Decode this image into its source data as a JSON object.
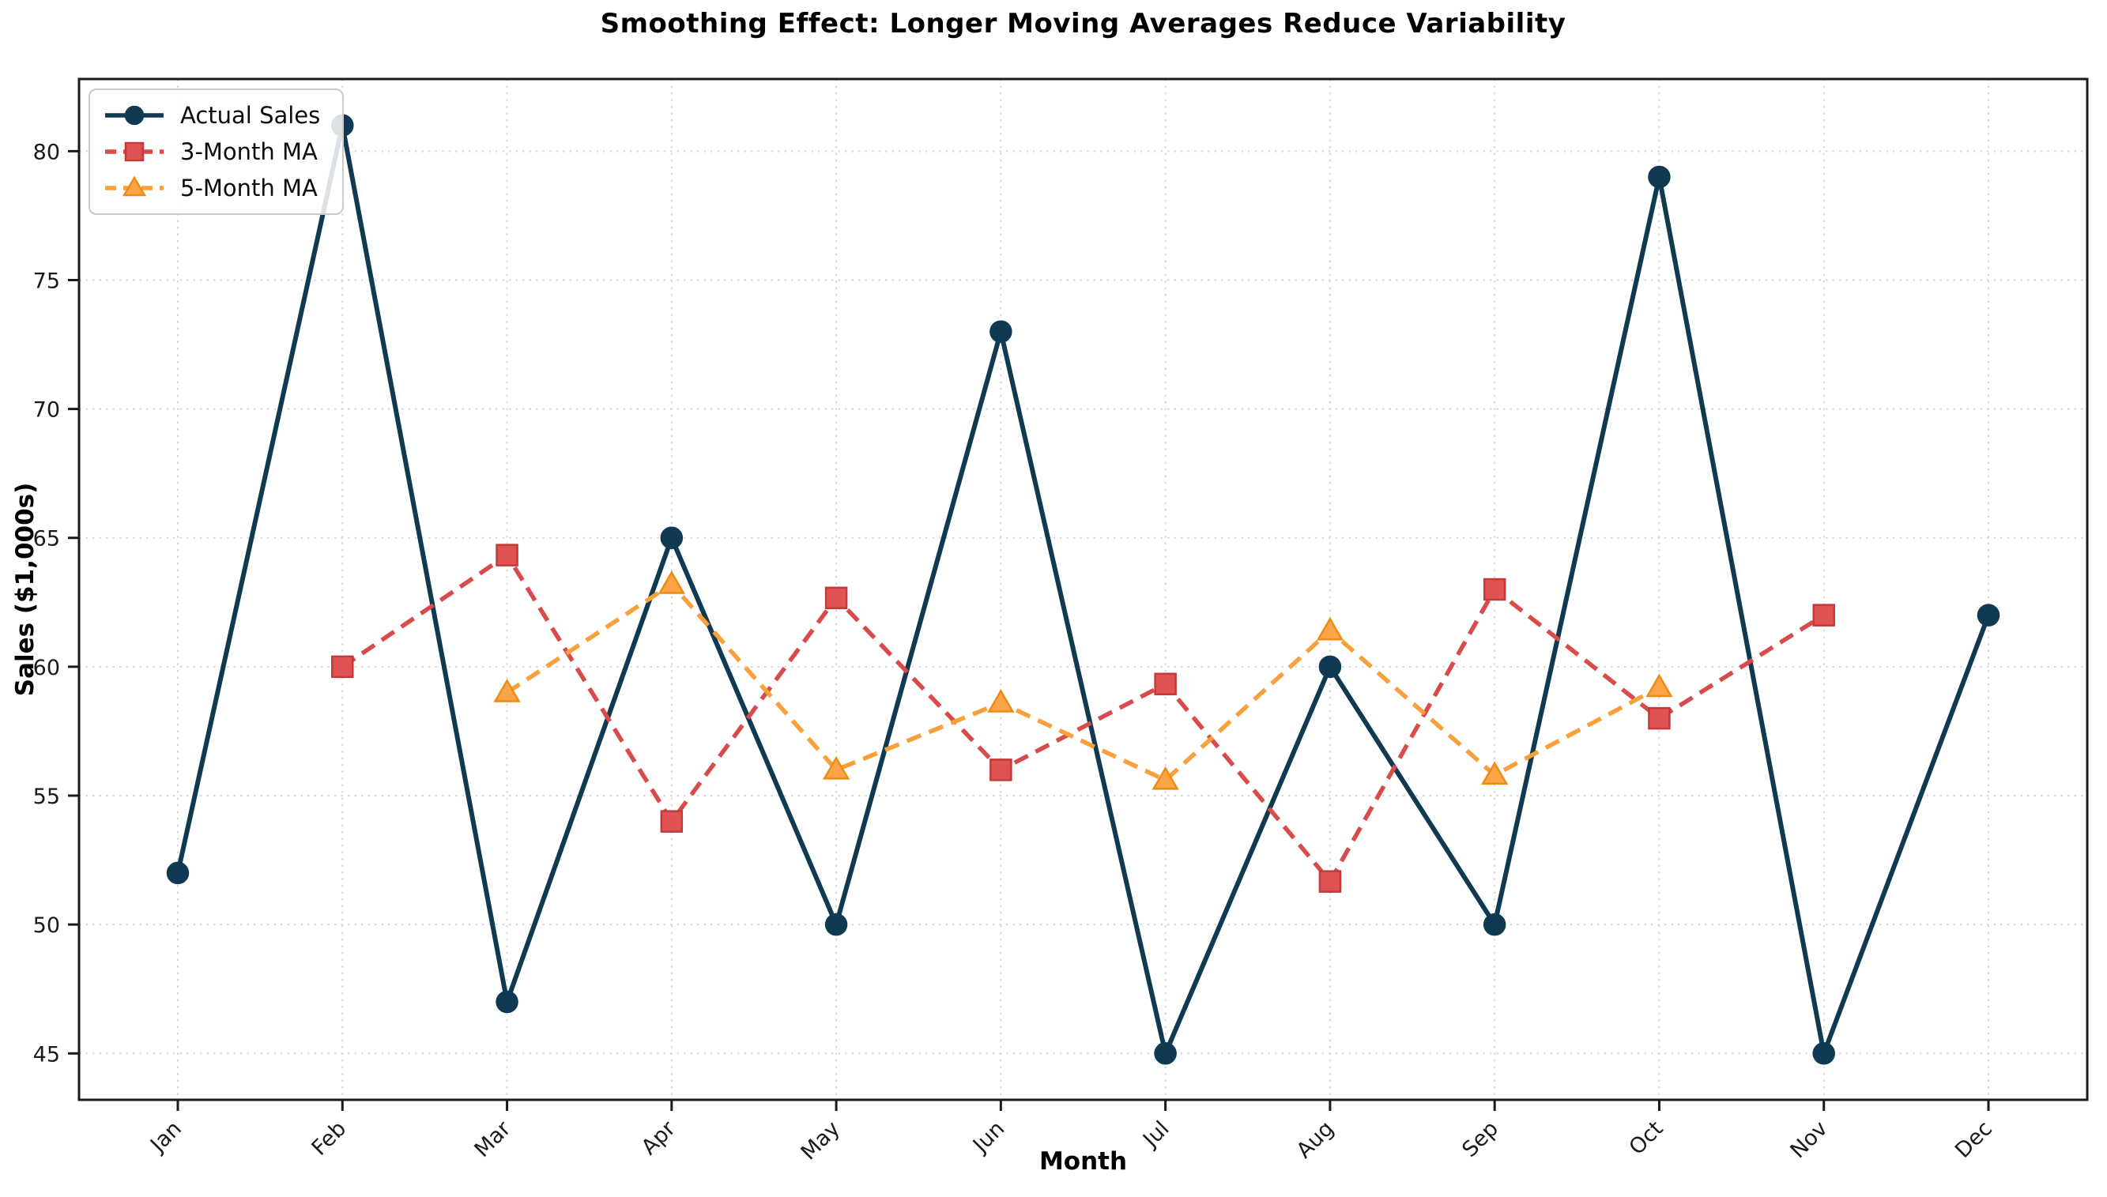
{
  "figure": {
    "background": "#ffffff",
    "axis_color": "#1a1a1a",
    "grid_color": "#d8d8d8"
  },
  "chart_data": {
    "type": "line",
    "title": "Smoothing Effect: Longer Moving Averages Reduce Variability",
    "xlabel": "Month",
    "ylabel": "Sales ($1,000s)",
    "categories": [
      "Jan",
      "Feb",
      "Mar",
      "Apr",
      "May",
      "Jun",
      "Jul",
      "Aug",
      "Sep",
      "Oct",
      "Nov",
      "Dec"
    ],
    "series": [
      {
        "name": "Actual Sales",
        "line_color": "#0f3a52",
        "line_style": "solid",
        "line_width": 6,
        "marker": "circle",
        "marker_fill": "#0f3a52",
        "marker_edge": "#0f3a52",
        "values": [
          52,
          81,
          47,
          65,
          50,
          73,
          45,
          60,
          50,
          79,
          45,
          62
        ]
      },
      {
        "name": "3-Month MA",
        "line_color": "#d94a4a",
        "line_style": "dashed",
        "line_width": 5.5,
        "marker": "square",
        "marker_fill": "#e05353",
        "marker_edge": "#c23a3a",
        "values": [
          null,
          60,
          64.33,
          54,
          62.67,
          56,
          59.33,
          51.67,
          63,
          58,
          62,
          null
        ]
      },
      {
        "name": "5-Month MA",
        "line_color": "#f9a03a",
        "line_style": "dashed",
        "line_width": 5.5,
        "marker": "triangle",
        "marker_fill": "#fba548",
        "marker_edge": "#ec8c15",
        "values": [
          null,
          null,
          59,
          63.2,
          56,
          58.6,
          55.6,
          61.4,
          55.8,
          59.2,
          null,
          null
        ]
      }
    ],
    "ylim": [
      43.2,
      82.8
    ],
    "yticks": [
      45,
      50,
      55,
      60,
      65,
      70,
      75,
      80
    ],
    "grid": true,
    "grid_style": "dotted",
    "legend_position": "upper left"
  }
}
